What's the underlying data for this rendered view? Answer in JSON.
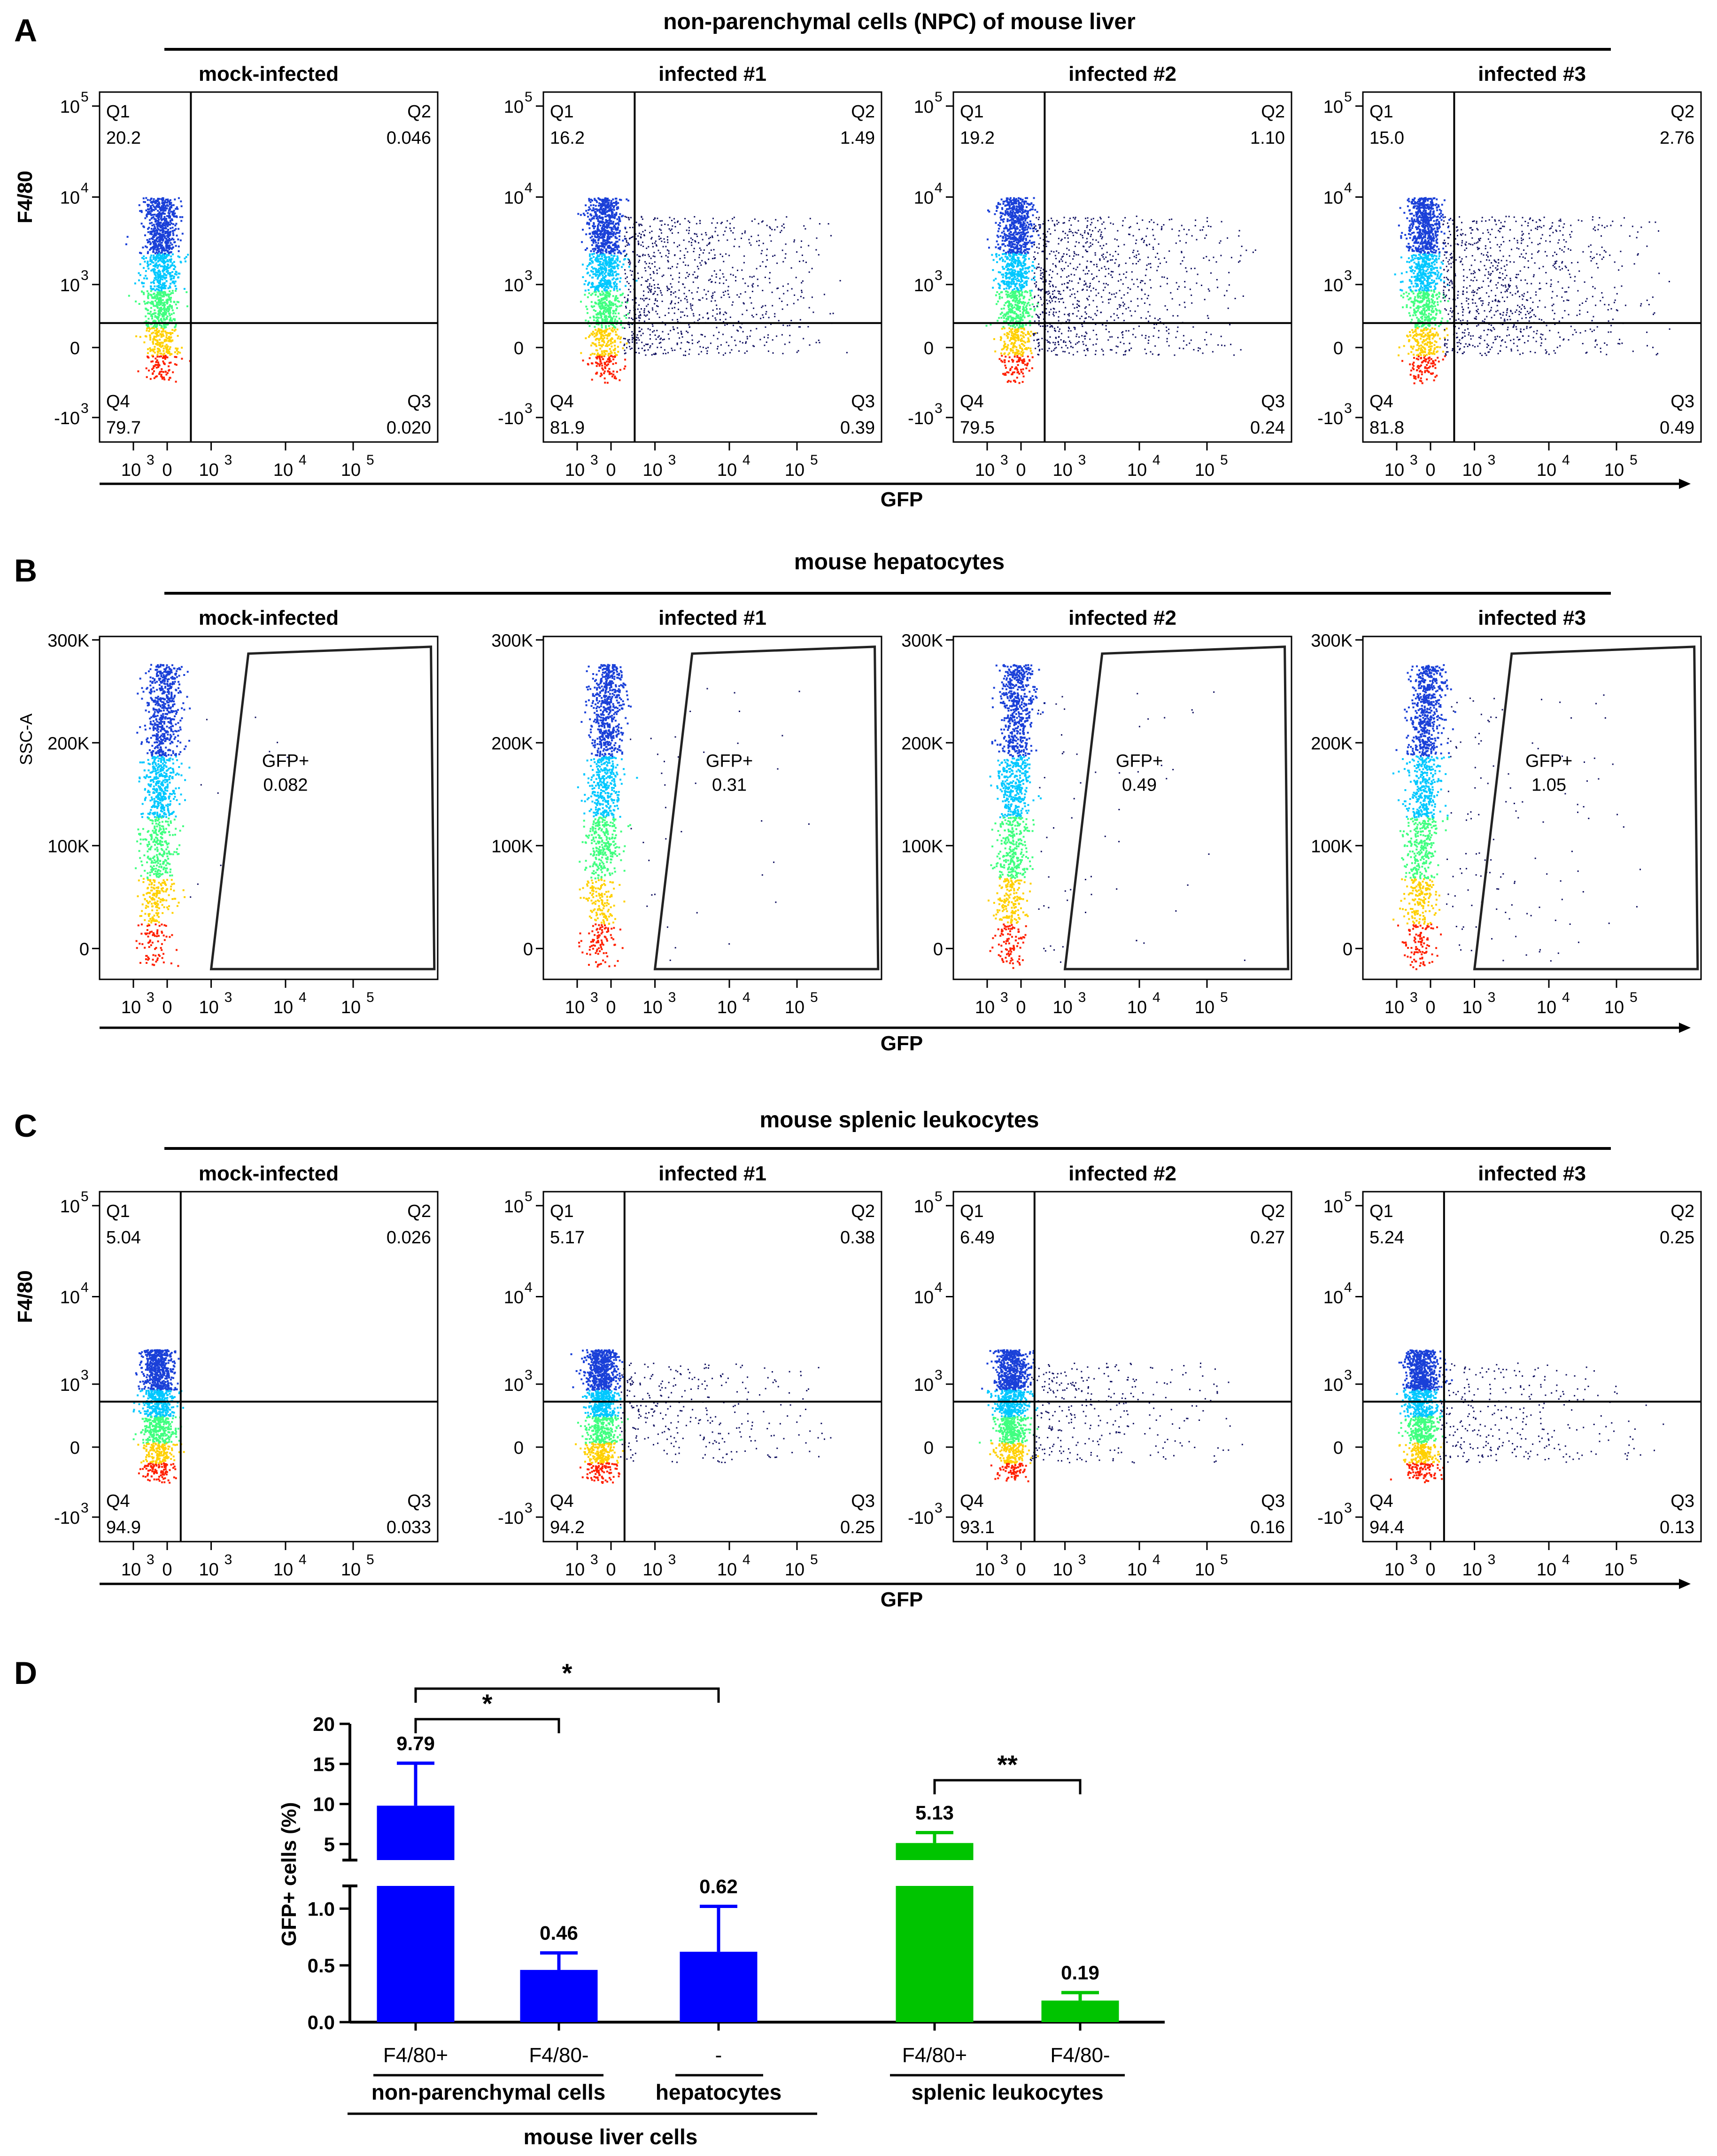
{
  "figure": {
    "panel_letters": [
      "A",
      "B",
      "C",
      "D"
    ],
    "panel_titles": [
      "non-parenchymal cells (NPC) of mouse liver",
      "mouse hepatocytes",
      "mouse splenic leukocytes"
    ],
    "sample_labels": [
      "mock-infected",
      "infected #1",
      "infected #2",
      "infected #3"
    ],
    "x_axis_label": "GFP",
    "y_axis_label_f480": "F4/80",
    "y_axis_label_ssc": "SSC-A",
    "quadrant_names": [
      "Q1",
      "Q2",
      "Q3",
      "Q4"
    ],
    "gate_name": "GFP+",
    "log_ticks": [
      "10",
      "0",
      "10",
      "10",
      "10"
    ],
    "log_exponents": [
      "3",
      "",
      "3",
      "4",
      "5"
    ],
    "y_log_ticks": [
      "10",
      "10",
      "10",
      "0",
      "-10"
    ],
    "y_log_exponents": [
      "5",
      "4",
      "3",
      "",
      "3"
    ],
    "ssc_ticks": [
      "300K",
      "200K",
      "100K",
      "0"
    ],
    "colors": {
      "density_low": "#1a1a8c",
      "density_mid": "#00c8ff",
      "density_high": "#ff2000",
      "bar_liver": "#0000ff",
      "bar_spleen": "#00c400"
    }
  },
  "chart_data": [
    {
      "type": "scatter",
      "panel": "A",
      "subtype": "flow-cytometry-quadrant",
      "title": "non-parenchymal cells (NPC) of mouse liver",
      "xlabel": "GFP",
      "ylabel": "F4/80",
      "x_scale": "biexponential",
      "y_scale": "biexponential",
      "samples": [
        {
          "name": "mock-infected",
          "Q1": "20.2",
          "Q2": "0.046",
          "Q3": "0.020",
          "Q4": "79.7"
        },
        {
          "name": "infected #1",
          "Q1": "16.2",
          "Q2": "1.49",
          "Q3": "0.39",
          "Q4": "81.9"
        },
        {
          "name": "infected #2",
          "Q1": "19.2",
          "Q2": "1.10",
          "Q3": "0.24",
          "Q4": "79.5"
        },
        {
          "name": "infected #3",
          "Q1": "15.0",
          "Q2": "2.76",
          "Q3": "0.49",
          "Q4": "81.8"
        }
      ]
    },
    {
      "type": "scatter",
      "panel": "B",
      "subtype": "flow-cytometry-gate",
      "title": "mouse hepatocytes",
      "xlabel": "GFP",
      "ylabel": "SSC-A",
      "x_scale": "biexponential",
      "y_scale": "linear",
      "samples": [
        {
          "name": "mock-infected",
          "GFP+": "0.082"
        },
        {
          "name": "infected #1",
          "GFP+": "0.31"
        },
        {
          "name": "infected #2",
          "GFP+": "0.49"
        },
        {
          "name": "infected #3",
          "GFP+": "1.05"
        }
      ]
    },
    {
      "type": "scatter",
      "panel": "C",
      "subtype": "flow-cytometry-quadrant",
      "title": "mouse splenic leukocytes",
      "xlabel": "GFP",
      "ylabel": "F4/80",
      "x_scale": "biexponential",
      "y_scale": "biexponential",
      "samples": [
        {
          "name": "mock-infected",
          "Q1": "5.04",
          "Q2": "0.026",
          "Q3": "0.033",
          "Q4": "94.9"
        },
        {
          "name": "infected #1",
          "Q1": "5.17",
          "Q2": "0.38",
          "Q3": "0.25",
          "Q4": "94.2"
        },
        {
          "name": "infected #2",
          "Q1": "6.49",
          "Q2": "0.27",
          "Q3": "0.16",
          "Q4": "93.1"
        },
        {
          "name": "infected #3",
          "Q1": "5.24",
          "Q2": "0.25",
          "Q3": "0.13",
          "Q4": "94.4"
        }
      ]
    },
    {
      "type": "bar",
      "panel": "D",
      "ylabel": "GFP+ cells (%)",
      "y_axis": "broken",
      "y_lower_range": [
        0,
        1.2
      ],
      "y_upper_range": [
        3,
        20
      ],
      "y_lower_ticks": [
        "0.0",
        "0.5",
        "1.0"
      ],
      "y_upper_ticks": [
        "5",
        "10",
        "15",
        "20"
      ],
      "categories": [
        "F4/80+",
        "F4/80-",
        "-",
        "F4/80+",
        "F4/80-"
      ],
      "groups": [
        "non-parenchymal cells",
        "non-parenchymal cells",
        "hepatocytes",
        "splenic leukocytes",
        "splenic leukocytes"
      ],
      "group_labels": [
        "non-parenchymal cells",
        "hepatocytes",
        "splenic leukocytes"
      ],
      "supergroup_label": "mouse   liver cells",
      "values": [
        9.79,
        0.46,
        0.62,
        5.13,
        0.19
      ],
      "value_labels": [
        "9.79",
        "0.46",
        "0.62",
        "5.13",
        "0.19"
      ],
      "error": [
        5.3,
        0.15,
        0.4,
        1.3,
        0.07
      ],
      "bar_colors": [
        "#0000ff",
        "#0000ff",
        "#0000ff",
        "#00c400",
        "#00c400"
      ],
      "significance": [
        {
          "from": 0,
          "to": 1,
          "label": "*"
        },
        {
          "from": 0,
          "to": 2,
          "label": "*"
        },
        {
          "from": 3,
          "to": 4,
          "label": "**"
        }
      ]
    }
  ]
}
